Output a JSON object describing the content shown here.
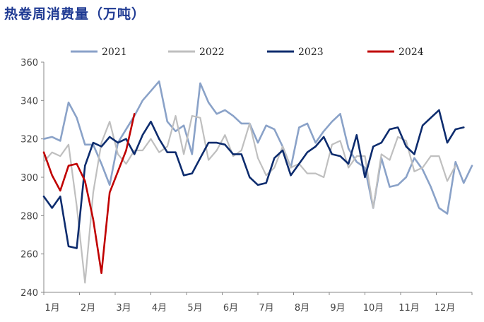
{
  "chart_data": {
    "type": "line",
    "title": "热卷周消费量（万吨）",
    "xlabel": "",
    "ylabel": "",
    "ylim": [
      240,
      360
    ],
    "yticks": [
      240,
      260,
      280,
      300,
      320,
      340,
      360
    ],
    "x_tick_labels": [
      "1月",
      "2月",
      "3月",
      "4月",
      "5月",
      "6月",
      "7月",
      "8月",
      "9月",
      "10月",
      "11月",
      "12月"
    ],
    "grid": false,
    "legend_position": "top",
    "series": [
      {
        "name": "2021",
        "color": "#8aa2c8",
        "values": [
          320,
          321,
          319,
          339,
          331,
          317,
          317,
          307,
          296,
          318,
          325,
          332,
          340,
          345,
          350,
          329,
          324,
          327,
          312,
          349,
          339,
          333,
          335,
          332,
          328,
          328,
          318,
          327,
          325,
          316,
          305,
          326,
          328,
          318,
          324,
          329,
          333,
          315,
          308,
          305,
          284,
          310,
          295,
          296,
          300,
          310,
          304,
          295,
          284,
          281,
          308,
          297,
          306
        ]
      },
      {
        "name": "2022",
        "color": "#bfbfbf",
        "values": [
          308,
          313,
          311,
          317,
          285,
          245,
          292,
          318,
          329,
          312,
          307,
          314,
          314,
          320,
          313,
          316,
          332,
          312,
          332,
          331,
          309,
          314,
          322,
          311,
          314,
          328,
          310,
          301,
          305,
          316,
          305,
          307,
          302,
          302,
          300,
          317,
          319,
          305,
          311,
          311,
          284,
          312,
          309,
          321,
          319,
          303,
          305,
          311,
          311,
          298,
          306
        ]
      },
      {
        "name": "2023",
        "color": "#0d2c6e",
        "values": [
          290,
          284,
          290,
          264,
          263,
          306,
          318,
          316,
          321,
          318,
          320,
          312,
          322,
          329,
          320,
          313,
          313,
          301,
          302,
          310,
          318,
          318,
          317,
          312,
          312,
          300,
          296,
          297,
          310,
          314,
          301,
          307,
          313,
          316,
          321,
          312,
          311,
          307,
          322,
          300,
          316,
          318,
          325,
          326,
          316,
          312,
          327,
          331,
          335,
          318,
          325,
          326
        ]
      },
      {
        "name": "2024",
        "color": "#c00000",
        "values": [
          313,
          301,
          293,
          306,
          307,
          298,
          278,
          250,
          292,
          303,
          314,
          333
        ]
      }
    ]
  }
}
